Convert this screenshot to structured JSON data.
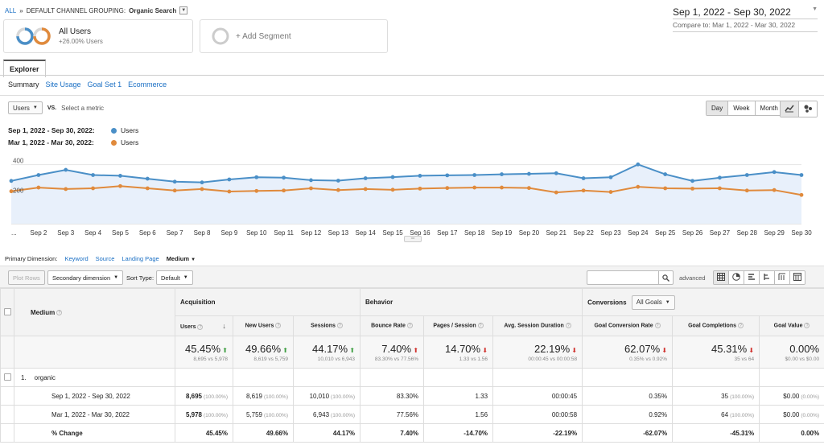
{
  "breadcrumb": {
    "all": "ALL",
    "sep": "»",
    "prefix": "DEFAULT CHANNEL GROUPING:",
    "value": "Organic Search"
  },
  "date_range": {
    "main": "Sep 1, 2022 - Sep 30, 2022",
    "compare": "Compare to: Mar 1, 2022 - Mar 30, 2022"
  },
  "segments": {
    "current": {
      "name": "All Users",
      "sub": "+26.00% Users"
    },
    "add_label": "+ Add Segment"
  },
  "tabs": {
    "explorer": "Explorer"
  },
  "subtabs": [
    "Summary",
    "Site Usage",
    "Goal Set 1",
    "Ecommerce"
  ],
  "metric_row": {
    "metric": "Users",
    "vs": "VS.",
    "select": "Select a metric"
  },
  "time_buttons": [
    "Day",
    "Week",
    "Month"
  ],
  "legend": [
    {
      "date": "Sep 1, 2022 - Sep 30, 2022:",
      "metric": "Users",
      "color": "#4a8fc7"
    },
    {
      "date": "Mar 1, 2022 - Mar 30, 2022:",
      "metric": "Users",
      "color": "#e08a3c"
    }
  ],
  "chart_data": {
    "type": "line",
    "y_ticks": [
      "400",
      "200"
    ],
    "x_labels": [
      "...",
      "Sep 2",
      "Sep 3",
      "Sep 4",
      "Sep 5",
      "Sep 6",
      "Sep 7",
      "Sep 8",
      "Sep 9",
      "Sep 10",
      "Sep 11",
      "Sep 12",
      "Sep 13",
      "Sep 14",
      "Sep 15",
      "Sep 16",
      "Sep 17",
      "Sep 18",
      "Sep 19",
      "Sep 20",
      "Sep 21",
      "Sep 22",
      "Sep 23",
      "Sep 24",
      "Sep 25",
      "Sep 26",
      "Sep 27",
      "Sep 28",
      "Sep 29",
      "Sep 30"
    ],
    "ylim": [
      0,
      480
    ],
    "series": [
      {
        "color": "#4a8fc7",
        "values": [
          290,
          330,
          365,
          330,
          325,
          305,
          285,
          280,
          300,
          315,
          312,
          295,
          292,
          308,
          316,
          325,
          328,
          330,
          335,
          338,
          342,
          308,
          315,
          402,
          335,
          290,
          312,
          330,
          350,
          330
        ]
      },
      {
        "color": "#e08a3c",
        "values": [
          220,
          245,
          235,
          240,
          255,
          240,
          225,
          235,
          218,
          222,
          225,
          240,
          228,
          235,
          230,
          238,
          242,
          245,
          245,
          242,
          212,
          225,
          215,
          250,
          240,
          238,
          240,
          225,
          228,
          195
        ]
      }
    ]
  },
  "primary_dim": {
    "label": "Primary Dimension:",
    "options": [
      "Keyword",
      "Source",
      "Landing Page"
    ],
    "active": "Medium"
  },
  "toolbar": {
    "plot_rows": "Plot Rows",
    "secondary": "Secondary dimension",
    "sort_label": "Sort Type:",
    "sort_value": "Default",
    "advanced": "advanced"
  },
  "table": {
    "medium_header": "Medium",
    "groups": {
      "acq": "Acquisition",
      "beh": "Behavior",
      "conv": "Conversions",
      "goals": "All Goals"
    },
    "columns": [
      "Users",
      "New Users",
      "Sessions",
      "Bounce Rate",
      "Pages / Session",
      "Avg. Session Duration",
      "Goal Conversion Rate",
      "Goal Completions",
      "Goal Value"
    ],
    "totals": [
      {
        "value": "45.45%",
        "sub": "8,695 vs 5,978"
      },
      {
        "value": "49.66%",
        "sub": "8,619 vs 5,759"
      },
      {
        "value": "44.17%",
        "sub": "10,010 vs 6,943"
      },
      {
        "value": "7.40%",
        "sub": "83.30% vs 77.56%"
      },
      {
        "value": "14.70%",
        "sub": "1.33 vs 1.56"
      },
      {
        "value": "22.19%",
        "sub": "00:00:45 vs 00:00:58"
      },
      {
        "value": "62.07%",
        "sub": "0.35% vs 0.92%"
      },
      {
        "value": "45.31%",
        "sub": "35 vs 64"
      },
      {
        "value": "0.00%",
        "sub": "$0.00 vs $0.00"
      }
    ],
    "row_index": "1.",
    "row_name": "organic",
    "rows": [
      {
        "label": "Sep 1, 2022 - Sep 30, 2022",
        "cells": [
          [
            "8,695",
            "(100.00%)"
          ],
          [
            "8,619",
            "(100.00%)"
          ],
          [
            "10,010",
            "(100.00%)"
          ],
          [
            "83.30%",
            ""
          ],
          [
            "1.33",
            ""
          ],
          [
            "00:00:45",
            ""
          ],
          [
            "0.35%",
            ""
          ],
          [
            "35",
            "(100.00%)"
          ],
          [
            "$0.00",
            "(0.00%)"
          ]
        ]
      },
      {
        "label": "Mar 1, 2022 - Mar 30, 2022",
        "cells": [
          [
            "5,978",
            "(100.00%)"
          ],
          [
            "5,759",
            "(100.00%)"
          ],
          [
            "6,943",
            "(100.00%)"
          ],
          [
            "77.56%",
            ""
          ],
          [
            "1.56",
            ""
          ],
          [
            "00:00:58",
            ""
          ],
          [
            "0.92%",
            ""
          ],
          [
            "64",
            "(100.00%)"
          ],
          [
            "$0.00",
            "(0.00%)"
          ]
        ]
      },
      {
        "label": "% Change",
        "cells": [
          [
            "45.45%",
            ""
          ],
          [
            "49.66%",
            ""
          ],
          [
            "44.17%",
            ""
          ],
          [
            "7.40%",
            ""
          ],
          [
            "-14.70%",
            ""
          ],
          [
            "-22.19%",
            ""
          ],
          [
            "-62.07%",
            ""
          ],
          [
            "-45.31%",
            ""
          ],
          [
            "0.00%",
            ""
          ]
        ]
      }
    ]
  }
}
